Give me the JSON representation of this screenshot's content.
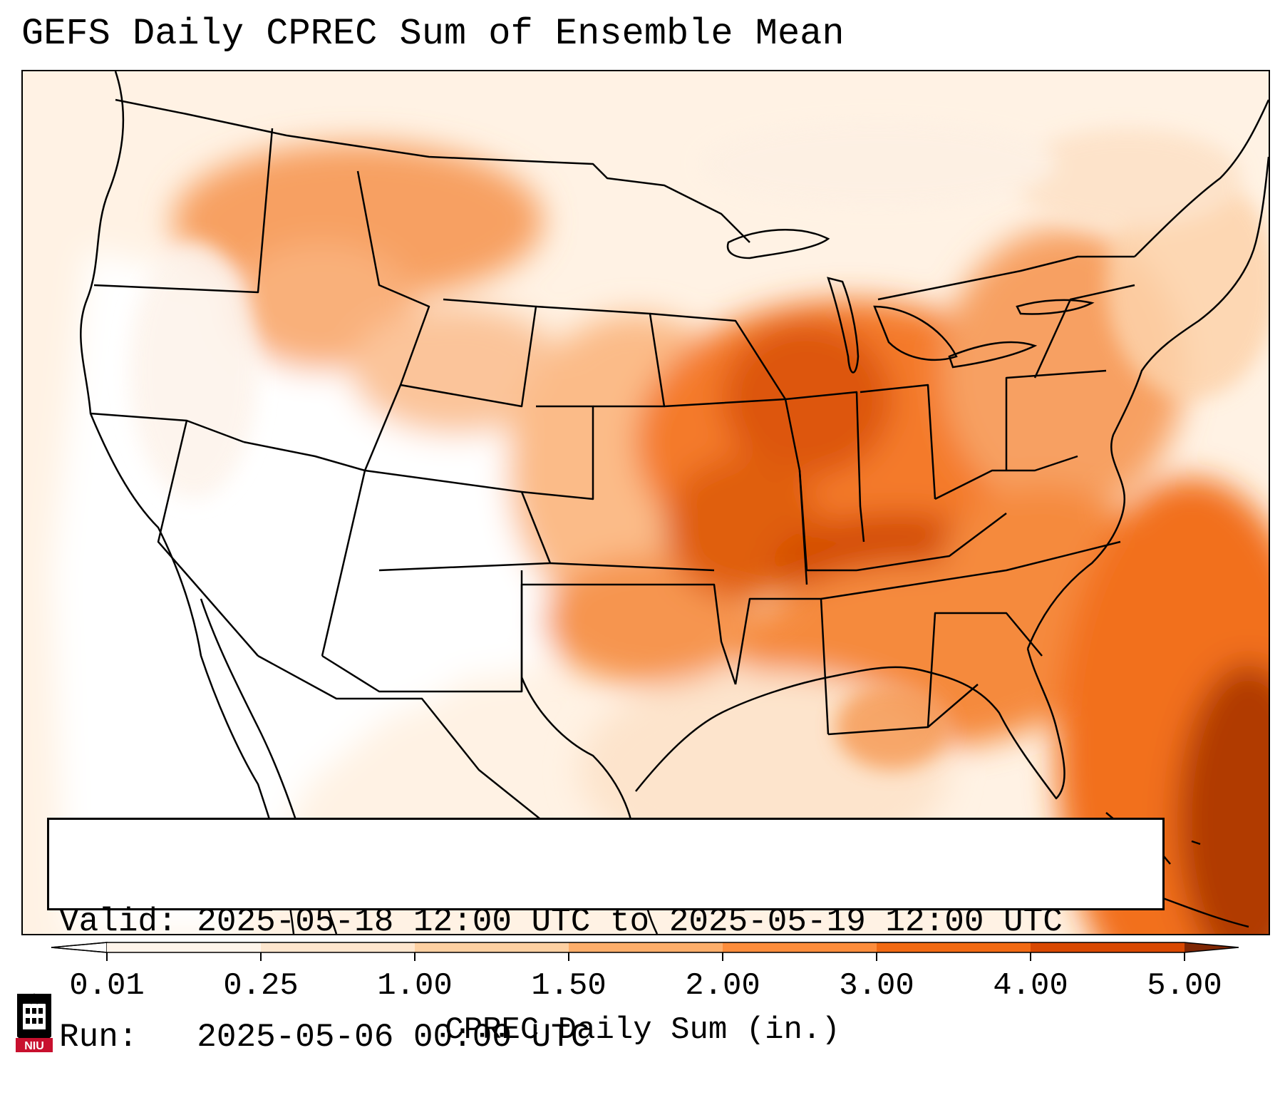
{
  "title": "GEFS Daily CPREC Sum of Ensemble Mean",
  "info": {
    "valid_label": "Valid:",
    "valid_value": "2025-05-18 12:00 UTC to 2025-05-19 12:00 UTC",
    "run_label": "Run:",
    "run_value": "2025-05-06 00:00 UTC"
  },
  "colorbar": {
    "label": "CPREC Daily Sum (in.)",
    "ticks": [
      "0.01",
      "0.25",
      "1.00",
      "1.50",
      "2.00",
      "3.00",
      "4.00",
      "5.00"
    ],
    "colors": [
      "#fff5eb",
      "#fee6ce",
      "#fdd0a2",
      "#fdae6b",
      "#fd8d3c",
      "#f16913",
      "#d94801",
      "#a63603"
    ],
    "under_color": "#ffffff",
    "over_color": "#7f2704"
  },
  "logo": {
    "text": "NIU",
    "color": "#c8102e"
  }
}
